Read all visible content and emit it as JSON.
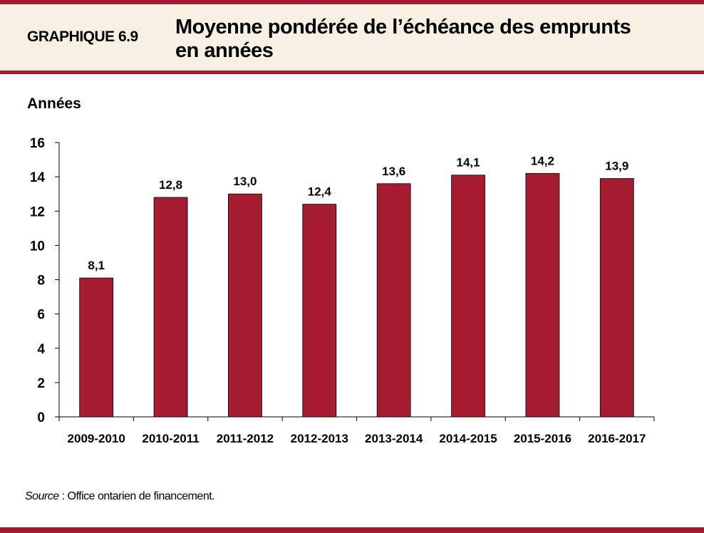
{
  "header": {
    "label": "GRAPHIQUE 6.9",
    "title_line1": "Moyenne pondérée de l’échéance des emprunts",
    "title_line2": "en années"
  },
  "footer": {
    "source_label": "Source",
    "source_text": " : Office  ontarien de financement."
  },
  "colors": {
    "bar": "#a51c30",
    "accent": "#a51c30",
    "band": "#f7f1e3"
  },
  "chart_data": {
    "type": "bar",
    "ylabel": "Années",
    "xlabel": "",
    "categories": [
      "2009-2010",
      "2010-2011",
      "2011-2012",
      "2012-2013",
      "2013-2014",
      "2014-2015",
      "2015-2016",
      "2016-2017"
    ],
    "values": [
      8.1,
      12.8,
      13.0,
      12.4,
      13.6,
      14.1,
      14.2,
      13.9
    ],
    "data_labels": [
      "8,1",
      "12,8",
      "13,0",
      "12,4",
      "13,6",
      "14,1",
      "14,2",
      "13,9"
    ],
    "ylim": [
      0,
      16
    ],
    "yticks": [
      0,
      2,
      4,
      6,
      8,
      10,
      12,
      14,
      16
    ],
    "grid": false
  }
}
